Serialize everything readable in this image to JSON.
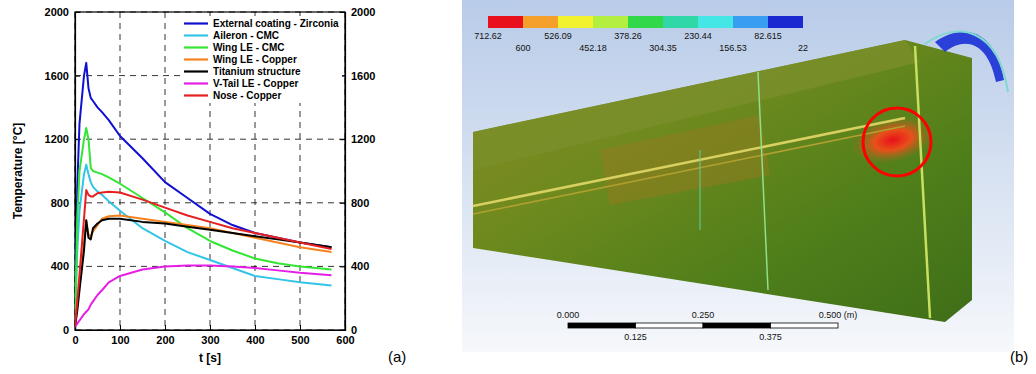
{
  "panel_labels": [
    "(a)",
    "(b)"
  ],
  "chart_data": {
    "type": "line",
    "x_label": "t [s]",
    "y_label": "Temperature [°C]",
    "x": [
      0,
      5,
      10,
      20,
      25,
      30,
      35,
      40,
      50,
      60,
      75,
      100,
      150,
      200,
      250,
      300,
      350,
      400,
      450,
      500,
      570
    ],
    "series": [
      {
        "name": "External coating - Zirconia",
        "color": "#1010d0",
        "values": [
          20,
          900,
          1300,
          1600,
          1680,
          1520,
          1460,
          1440,
          1400,
          1370,
          1320,
          1220,
          1080,
          930,
          830,
          730,
          660,
          610,
          580,
          550,
          520
        ]
      },
      {
        "name": "Aileron - CMC",
        "color": "#33c4e8",
        "values": [
          20,
          500,
          750,
          980,
          1040,
          980,
          930,
          900,
          870,
          850,
          810,
          750,
          640,
          560,
          490,
          440,
          390,
          340,
          320,
          300,
          280
        ]
      },
      {
        "name": "Wing LE - CMC",
        "color": "#33e633",
        "values": [
          20,
          700,
          1000,
          1200,
          1270,
          1200,
          1020,
          1000,
          990,
          980,
          960,
          920,
          830,
          740,
          640,
          560,
          500,
          450,
          420,
          400,
          380
        ]
      },
      {
        "name": "Wing LE - Copper",
        "color": "#f5821f",
        "values": [
          20,
          150,
          300,
          550,
          690,
          600,
          590,
          620,
          660,
          700,
          715,
          720,
          700,
          680,
          660,
          640,
          610,
          580,
          550,
          520,
          490
        ]
      },
      {
        "name": "Titanium structure",
        "color": "#000000",
        "values": [
          20,
          120,
          250,
          500,
          690,
          580,
          570,
          640,
          670,
          690,
          700,
          700,
          680,
          670,
          650,
          630,
          610,
          590,
          570,
          550,
          520
        ]
      },
      {
        "name": "V-Tail LE - Copper",
        "color": "#e61ee6",
        "values": [
          20,
          40,
          60,
          100,
          115,
          130,
          160,
          180,
          220,
          250,
          300,
          340,
          380,
          400,
          405,
          405,
          400,
          390,
          375,
          360,
          345
        ]
      },
      {
        "name": "Nose - Copper",
        "color": "#e62020",
        "values": [
          20,
          180,
          350,
          700,
          880,
          850,
          840,
          840,
          860,
          865,
          870,
          865,
          820,
          770,
          720,
          680,
          640,
          610,
          580,
          550,
          510
        ]
      }
    ],
    "xlim": [
      0,
      600
    ],
    "xticks": [
      0,
      100,
      200,
      300,
      400,
      500,
      600
    ],
    "ylim": [
      0,
      2000
    ],
    "yticks": [
      0,
      400,
      800,
      1200,
      1600,
      2000
    ],
    "y2lim": [
      0,
      2000
    ],
    "y2ticks": [
      0,
      400,
      800,
      1200,
      1600,
      2000
    ],
    "grid": true,
    "legend": "upper right"
  },
  "contour_plot": {
    "colorbar": {
      "ticks": [
        712.62,
        600,
        526.09,
        452.18,
        378.26,
        304.35,
        230.44,
        156.53,
        82.615,
        22
      ],
      "colors": [
        "#e8101a",
        "#f5a02a",
        "#f2f22e",
        "#b4ee40",
        "#30d84a",
        "#30d8a8",
        "#44e6e6",
        "#3a9ef0",
        "#1a2ad0"
      ]
    },
    "scale_bar": {
      "ticks": [
        {
          "value": 0,
          "label": "0.000"
        },
        {
          "value": 0.125,
          "label": "0.125"
        },
        {
          "value": 0.25,
          "label": "0.250"
        },
        {
          "value": 0.375,
          "label": "0.375"
        },
        {
          "value": 0.5,
          "label": "0.500 (m)"
        }
      ]
    }
  }
}
